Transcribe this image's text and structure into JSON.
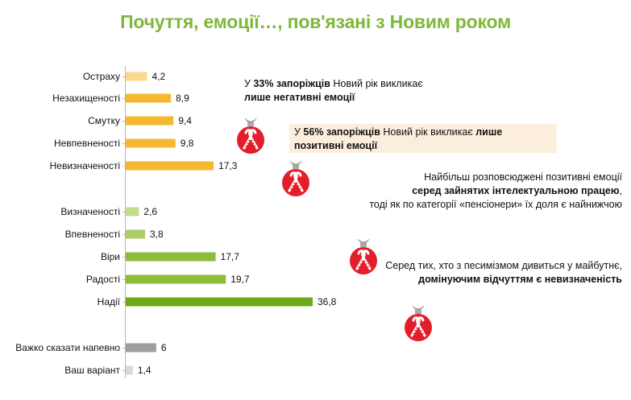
{
  "title": "Почуття, емоції…, пов'язані з Новим роком",
  "chart_data": {
    "type": "bar",
    "orientation": "horizontal",
    "title": "Почуття, емоції…, пов'язані з Новим роком",
    "xlim": [
      0,
      40
    ],
    "categories": [
      "Остраху",
      "Незахищеності",
      "Смутку",
      "Невпевненості",
      "Невизначеності",
      "Визначеності",
      "Впевненості",
      "Віри",
      "Радості",
      "Надії",
      "Важко сказати напевно",
      "Ваш варіант"
    ],
    "values": [
      4.2,
      8.9,
      9.4,
      9.8,
      17.3,
      2.6,
      3.8,
      17.7,
      19.7,
      36.8,
      6,
      1.4
    ],
    "value_labels": [
      "4,2",
      "8,9",
      "9,4",
      "9,8",
      "17,3",
      "2,6",
      "3,8",
      "17,7",
      "19,7",
      "36,8",
      "6",
      "1,4"
    ],
    "groups": [
      {
        "name": "negative",
        "indices": [
          0,
          1,
          2,
          3,
          4
        ]
      },
      {
        "name": "positive",
        "indices": [
          5,
          6,
          7,
          8,
          9
        ]
      },
      {
        "name": "other",
        "indices": [
          10,
          11
        ]
      }
    ],
    "colors": [
      "#fbd98a",
      "#f5b931",
      "#f5b931",
      "#f5b931",
      "#f5b931",
      "#c3dd8f",
      "#aacd6a",
      "#8cbc3c",
      "#8cbc3c",
      "#6ca818",
      "#9e9e9e",
      "#d8d8d8"
    ]
  },
  "notes": {
    "n1": {
      "pre": "У ",
      "b1": "33% запоріжців",
      "mid": " Новий рік викликає ",
      "b2": "лише негативні емоції"
    },
    "n2": {
      "pre": "У ",
      "b1": "56% запоріжців",
      "mid": " Новий рік викликає ",
      "b2": "лише позитивні емоції"
    },
    "n3": {
      "l1": "Найбільш розповсюджені позитивні емоції",
      "b1": "серед зайнятих інтелектуальною працею",
      "l2": ",",
      "l3": "тоді як по категорії «пенсіонери» їх доля є найнижчою"
    },
    "n4": {
      "l1": "Серед тих, хто з песимізмом дивиться у майбутнє, ",
      "b1": "домінуючим відчуттям є невизначеність"
    }
  },
  "ornament_icon": "christmas-ornament-candy-cane-icon"
}
